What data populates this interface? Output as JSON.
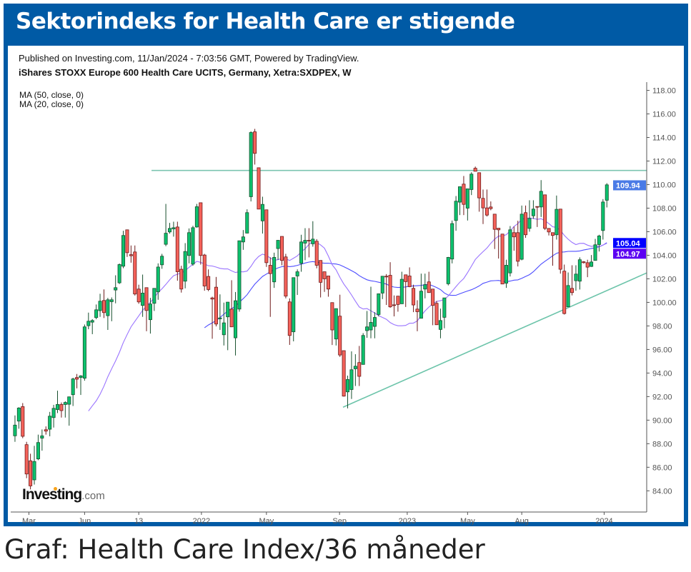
{
  "header": {
    "title": "Sektorindeks for Health Care er stigende"
  },
  "published": "Published on Investing.com, 11/Jan/2024 - 7:03:56 GMT, Powered by TradingView.",
  "symbol": "iShares STOXX Europe 600 Health Care UCITS, Germany, Xetra:SXDPEX, W",
  "indicators": [
    "MA (50, close, 0)",
    "MA (20, close, 0)"
  ],
  "logo": {
    "text": "Investing",
    "suffix": ".com"
  },
  "caption": "Graf: Health Care Index/36 måneder",
  "chart_data": {
    "type": "candlestick",
    "interval": "weekly",
    "ylim": [
      82.2,
      118.7
    ],
    "xlim": [
      -1.1,
      163.3
    ],
    "y_ticks": [
      84,
      86,
      88,
      90,
      92,
      94,
      96,
      98,
      100,
      102,
      104,
      106,
      108,
      110,
      112,
      114,
      116,
      118
    ],
    "x_ticks": [
      {
        "label": "Mar",
        "index": 3.6
      },
      {
        "label": "Jun",
        "index": 18
      },
      {
        "label": "13",
        "index": 32
      },
      {
        "label": "2022",
        "index": 48.2
      },
      {
        "label": "May",
        "index": 65
      },
      {
        "label": "Sep",
        "index": 83.9
      },
      {
        "label": "2023",
        "index": 101.4
      },
      {
        "label": "May",
        "index": 117
      },
      {
        "label": "Aug",
        "index": 131
      },
      {
        "label": "2024",
        "index": 152.3
      }
    ],
    "price_labels": {
      "last": {
        "text": "109.94",
        "value": 109.94,
        "color": "#4a7be6"
      },
      "ma50": {
        "text": "105.04",
        "value": 105.04,
        "color": "#0000ff"
      },
      "ma20": {
        "text": "104.97",
        "value": 104.97,
        "color": "#5c00f2"
      }
    },
    "moving_averages": [
      {
        "name": "MA (50, close, 0)",
        "period": 50,
        "color": "#4d4dff"
      },
      {
        "name": "MA (20, close, 0)",
        "period": 20,
        "color": "#9a74ff"
      }
    ],
    "lines": [
      {
        "name": "resistance",
        "from": [
          35.3,
          111.2
        ],
        "to": [
          163.3,
          111.2
        ],
        "color": "#7cc4b0"
      },
      {
        "name": "support-trend",
        "from": [
          84.8,
          91.1
        ],
        "to": [
          163.3,
          102.5
        ],
        "color": "#6cc4aa"
      }
    ],
    "colors": {
      "up": "#0cc26e",
      "up_border": "#17502e",
      "down": "#f5625a",
      "down_border": "#6e1a1a"
    },
    "ohlc": [
      [
        88.67,
        90.4,
        88.16,
        89.58
      ],
      [
        89.92,
        91.1,
        89.27,
        91.03
      ],
      [
        91.15,
        91.45,
        88.47,
        88.63
      ],
      [
        87.92,
        88.16,
        85.07,
        85.43
      ],
      [
        86.55,
        87.15,
        84.12,
        84.42
      ],
      [
        84.93,
        87.82,
        84.53,
        86.49
      ],
      [
        86.71,
        88.77,
        86.6,
        88.1
      ],
      [
        88.47,
        89.21,
        87.41,
        88.67
      ],
      [
        89.19,
        89.47,
        88.77,
        89.07
      ],
      [
        89.23,
        90.7,
        88.63,
        90.34
      ],
      [
        90.22,
        91.3,
        89.37,
        91.0
      ],
      [
        90.9,
        92.5,
        90.6,
        91.33
      ],
      [
        91.33,
        91.5,
        90.22,
        90.81
      ],
      [
        91.33,
        91.6,
        90.22,
        91.5
      ],
      [
        91.35,
        91.98,
        89.53,
        91.98
      ],
      [
        92.16,
        93.6,
        91.2,
        93.5
      ],
      [
        93.62,
        93.92,
        92.7,
        93.48
      ],
      [
        93.62,
        93.82,
        92.14,
        93.76
      ],
      [
        93.56,
        98.12,
        93.35,
        97.92
      ],
      [
        98.02,
        99.13,
        97.72,
        98.4
      ],
      [
        98.32,
        98.57,
        97.3,
        98.46
      ],
      [
        98.71,
        99.82,
        98.57,
        99.37
      ],
      [
        99.3,
        100.73,
        98.77,
        100.1
      ],
      [
        100.16,
        101.1,
        98.67,
        99.13
      ],
      [
        98.87,
        100.38,
        97.66,
        100.22
      ],
      [
        100.06,
        100.42,
        98.4,
        100.22
      ],
      [
        101.05,
        102.3,
        99.92,
        101.25
      ],
      [
        101.66,
        103.3,
        101.56,
        103.21
      ],
      [
        103.07,
        106.08,
        102.9,
        105.68
      ],
      [
        106.16,
        106.16,
        103.86,
        104.22
      ],
      [
        104.05,
        104.83,
        103.37,
        103.96
      ],
      [
        104.28,
        104.83,
        100.58,
        100.71
      ],
      [
        101.13,
        101.5,
        99.88,
        100.04
      ],
      [
        99.74,
        102.36,
        98.77,
        100.79
      ],
      [
        101.25,
        101.25,
        97.55,
        99.31
      ],
      [
        98.53,
        100.38,
        97.35,
        99.86
      ],
      [
        99.92,
        101.19,
        99.27,
        101.19
      ],
      [
        100.89,
        103.31,
        100.22,
        103.0
      ],
      [
        103.19,
        104.12,
        102.85,
        103.92
      ],
      [
        104.93,
        108.36,
        104.77,
        105.87
      ],
      [
        105.98,
        106.75,
        105.84,
        106.28
      ],
      [
        106.24,
        106.85,
        105.58,
        106.34
      ],
      [
        106.4,
        106.85,
        101.84,
        102.6
      ],
      [
        102.81,
        103.11,
        100.83,
        101.13
      ],
      [
        101.8,
        105.03,
        101.19,
        104.32
      ],
      [
        103.98,
        106.28,
        103.31,
        105.92
      ],
      [
        103.25,
        106.5,
        103.11,
        106.34
      ],
      [
        106.4,
        108.36,
        106.34,
        108.12
      ],
      [
        108.46,
        108.46,
        103.21,
        103.98
      ],
      [
        104.02,
        104.12,
        100.99,
        101.39
      ],
      [
        102.2,
        102.8,
        100.95,
        101.09
      ],
      [
        100.38,
        100.48,
        96.91,
        100.28
      ],
      [
        101.29,
        102.16,
        97.96,
        98.16
      ],
      [
        98.6,
        100.68,
        97.66,
        98.68
      ],
      [
        97.25,
        99.98,
        96.34,
        98.26
      ],
      [
        98.77,
        100.02,
        95.94,
        100.02
      ],
      [
        99.43,
        101.88,
        97.92,
        97.92
      ],
      [
        96.99,
        100.88,
        95.49,
        100.14
      ],
      [
        99.43,
        105.23,
        99.21,
        105.23
      ],
      [
        105.13,
        106.14,
        104.46,
        105.56
      ],
      [
        105.88,
        107.9,
        105.88,
        107.62
      ],
      [
        108.97,
        114.52,
        108.57,
        114.42
      ],
      [
        114.48,
        114.73,
        111.7,
        112.65
      ],
      [
        111.43,
        111.43,
        107.92,
        107.92
      ],
      [
        106.92,
        108.97,
        105.84,
        108.32
      ],
      [
        107.86,
        107.86,
        103.01,
        103.37
      ],
      [
        103.15,
        103.82,
        98.77,
        102.44
      ],
      [
        101.74,
        104.22,
        101.23,
        103.82
      ],
      [
        104.57,
        105.27,
        103.6,
        105.27
      ],
      [
        105.6,
        105.6,
        103.15,
        103.56
      ],
      [
        103.86,
        104.12,
        100.34,
        100.53
      ],
      [
        100.04,
        100.34,
        96.39,
        97.19
      ],
      [
        97.5,
        102.1,
        96.69,
        102.1
      ],
      [
        102.24,
        102.8,
        100.63,
        102.6
      ],
      [
        103.31,
        105.74,
        102.6,
        105.13
      ],
      [
        105.03,
        106.3,
        103.58,
        105.27
      ],
      [
        105.27,
        106.3,
        103.82,
        105.23
      ],
      [
        104.97,
        106.89,
        104.73,
        105.37
      ],
      [
        105.19,
        105.37,
        102.89,
        103.15
      ],
      [
        103.56,
        103.56,
        100.42,
        101.7
      ],
      [
        102.6,
        102.6,
        100.89,
        102.0
      ],
      [
        102.24,
        102.24,
        100.48,
        101.13
      ],
      [
        99.98,
        99.98,
        96.38,
        97.66
      ],
      [
        96.89,
        99.47,
        96.34,
        99.47
      ],
      [
        98.83,
        100.65,
        95.37,
        95.53
      ],
      [
        95.9,
        95.9,
        92.0,
        92.04
      ],
      [
        92.4,
        93.78,
        91.0,
        93.45
      ],
      [
        92.6,
        95.84,
        91.8,
        94.28
      ],
      [
        94.36,
        95.6,
        92.9,
        94.58
      ],
      [
        94.89,
        96.3,
        92.9,
        93.72
      ],
      [
        94.73,
        97.39,
        94.73,
        97.19
      ],
      [
        97.6,
        99.27,
        96.99,
        97.92
      ],
      [
        97.66,
        101.33,
        96.95,
        98.3
      ],
      [
        97.96,
        99.17,
        96.95,
        98.72
      ],
      [
        98.97,
        100.73,
        98.81,
        100.73
      ],
      [
        100.79,
        102.22,
        100.28,
        102.22
      ],
      [
        102.22,
        102.4,
        99.78,
        102.16
      ],
      [
        102.3,
        103.41,
        99.54,
        99.62
      ],
      [
        99.79,
        100.59,
        98.81,
        99.73
      ],
      [
        100.53,
        100.53,
        99.21,
        99.82
      ],
      [
        99.88,
        102.6,
        99.88,
        101.96
      ],
      [
        102.34,
        102.34,
        99.61,
        101.76
      ],
      [
        102.24,
        102.97,
        101.29,
        101.33
      ],
      [
        101.19,
        101.5,
        99.17,
        99.78
      ],
      [
        99.43,
        100.18,
        97.55,
        99.21
      ],
      [
        98.65,
        102.44,
        98.65,
        100.95
      ],
      [
        101.13,
        102.44,
        100.34,
        101.5
      ],
      [
        101.74,
        102.6,
        100.83,
        100.83
      ],
      [
        101.13,
        101.13,
        98.06,
        99.74
      ],
      [
        99.92,
        100.12,
        98.1,
        98.1
      ],
      [
        97.7,
        99.47,
        96.95,
        98.46
      ],
      [
        98.73,
        100.38,
        97.8,
        100.38
      ],
      [
        101.58,
        103.86,
        101.44,
        103.82
      ],
      [
        103.68,
        106.95,
        103.31,
        106.69
      ],
      [
        106.95,
        109.03,
        106.08,
        108.59
      ],
      [
        108.51,
        109.82,
        107.41,
        109.82
      ],
      [
        110.04,
        110.73,
        107.41,
        108.32
      ],
      [
        108.0,
        109.64,
        106.95,
        109.64
      ],
      [
        109.58,
        111.05,
        109.11,
        110.89
      ],
      [
        111.39,
        111.53,
        111.13,
        111.13
      ],
      [
        111.01,
        111.01,
        107.7,
        108.87
      ],
      [
        108.83,
        109.58,
        106.65,
        108.02
      ],
      [
        108.02,
        109.58,
        107.29,
        107.41
      ],
      [
        108.1,
        108.57,
        107.82,
        107.96
      ],
      [
        107.49,
        107.49,
        104.53,
        106.2
      ],
      [
        106.3,
        106.3,
        103.72,
        106.16
      ],
      [
        105.8,
        105.8,
        101.56,
        101.56
      ],
      [
        101.63,
        103.62,
        101.23,
        103.15
      ],
      [
        102.5,
        106.48,
        102.2,
        106.16
      ],
      [
        105.92,
        106.44,
        104.38,
        105.56
      ],
      [
        105.92,
        106.93,
        103.05,
        103.49
      ],
      [
        103.66,
        108.22,
        103.57,
        107.49
      ],
      [
        107.62,
        108.22,
        105.48,
        105.74
      ],
      [
        106.28,
        108.67,
        106.0,
        107.13
      ],
      [
        107.35,
        108.67,
        107.09,
        107.92
      ],
      [
        108.14,
        108.14,
        106.4,
        108.1
      ],
      [
        108.1,
        110.38,
        107.25,
        109.43
      ],
      [
        109.13,
        109.13,
        106.14,
        106.28
      ],
      [
        106.28,
        106.28,
        105.68,
        105.98
      ],
      [
        105.92,
        105.92,
        103.11,
        105.68
      ],
      [
        105.74,
        109.07,
        105.33,
        107.9
      ],
      [
        107.92,
        107.92,
        102.44,
        102.81
      ],
      [
        102.65,
        103.21,
        98.97,
        99.05
      ],
      [
        99.62,
        102.54,
        99.62,
        101.43
      ],
      [
        101.19,
        103.15,
        100.59,
        100.83
      ],
      [
        101.84,
        103.15,
        100.99,
        102.4
      ],
      [
        101.8,
        103.82,
        101.09,
        103.62
      ],
      [
        103.45,
        103.5,
        103.3,
        103.37
      ],
      [
        103.37,
        103.62,
        102.14,
        102.99
      ],
      [
        103.05,
        104.02,
        103.01,
        103.43
      ],
      [
        103.56,
        105.39,
        103.56,
        104.89
      ],
      [
        104.91,
        105.74,
        104.32,
        105.64
      ],
      [
        106.1,
        108.77,
        105.33,
        108.52
      ],
      [
        108.67,
        110.12,
        108.06,
        109.98
      ]
    ]
  }
}
